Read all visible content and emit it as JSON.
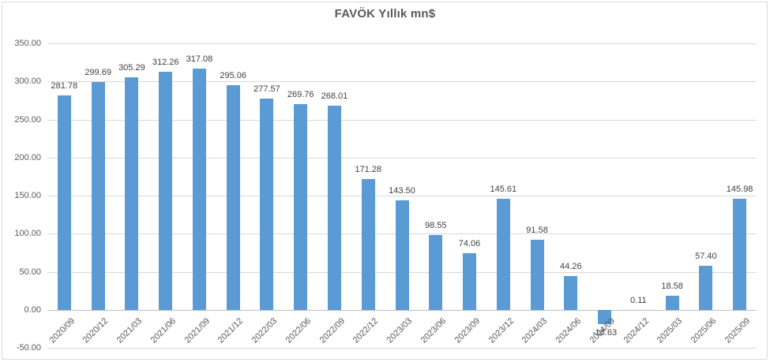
{
  "chart_data": {
    "type": "bar",
    "title": "FAVÖK Yıllık mn$",
    "xlabel": "",
    "ylabel": "",
    "ylim": [
      -50,
      350
    ],
    "grid": true,
    "legend": "none",
    "bar_color": "#5B9BD5",
    "gridline_color": "#D9D9D9",
    "axis_line_color": "#BFBFBF",
    "data_label_color": "#404040",
    "tick_label_color": "#595959",
    "categories": [
      "2020/09",
      "2020/12",
      "2021/03",
      "2021/06",
      "2021/09",
      "2021/12",
      "2022/03",
      "2022/06",
      "2022/09",
      "2022/12",
      "2023/03",
      "2023/06",
      "2023/09",
      "2023/12",
      "2024/03",
      "2024/06",
      "2024/09",
      "2024/12",
      "2025/03",
      "2025/06",
      "2025/09"
    ],
    "values": [
      281.78,
      299.69,
      305.29,
      312.26,
      317.08,
      295.06,
      277.57,
      269.76,
      268.01,
      171.28,
      143.5,
      98.55,
      74.06,
      145.61,
      91.58,
      44.26,
      -18.63,
      0.11,
      18.58,
      57.4,
      145.98
    ],
    "value_labels": [
      "281.78",
      "299.69",
      "305.29",
      "312.26",
      "317.08",
      "295.06",
      "277.57",
      "269.76",
      "268.01",
      "171.28",
      "143.50",
      "98.55",
      "74.06",
      "145.61",
      "91.58",
      "44.26",
      "-18.63",
      "0.11",
      "18.58",
      "57.40",
      "145.98"
    ],
    "y_ticks": [
      {
        "label": "350.00",
        "value": 350
      },
      {
        "label": "300.00",
        "value": 300
      },
      {
        "label": "250.00",
        "value": 250
      },
      {
        "label": "200.00",
        "value": 200
      },
      {
        "label": "150.00",
        "value": 150
      },
      {
        "label": "100.00",
        "value": 100
      },
      {
        "label": "50.00",
        "value": 50
      },
      {
        "label": "0.00",
        "value": 0
      },
      {
        "label": "-50.00",
        "value": -50
      }
    ]
  }
}
